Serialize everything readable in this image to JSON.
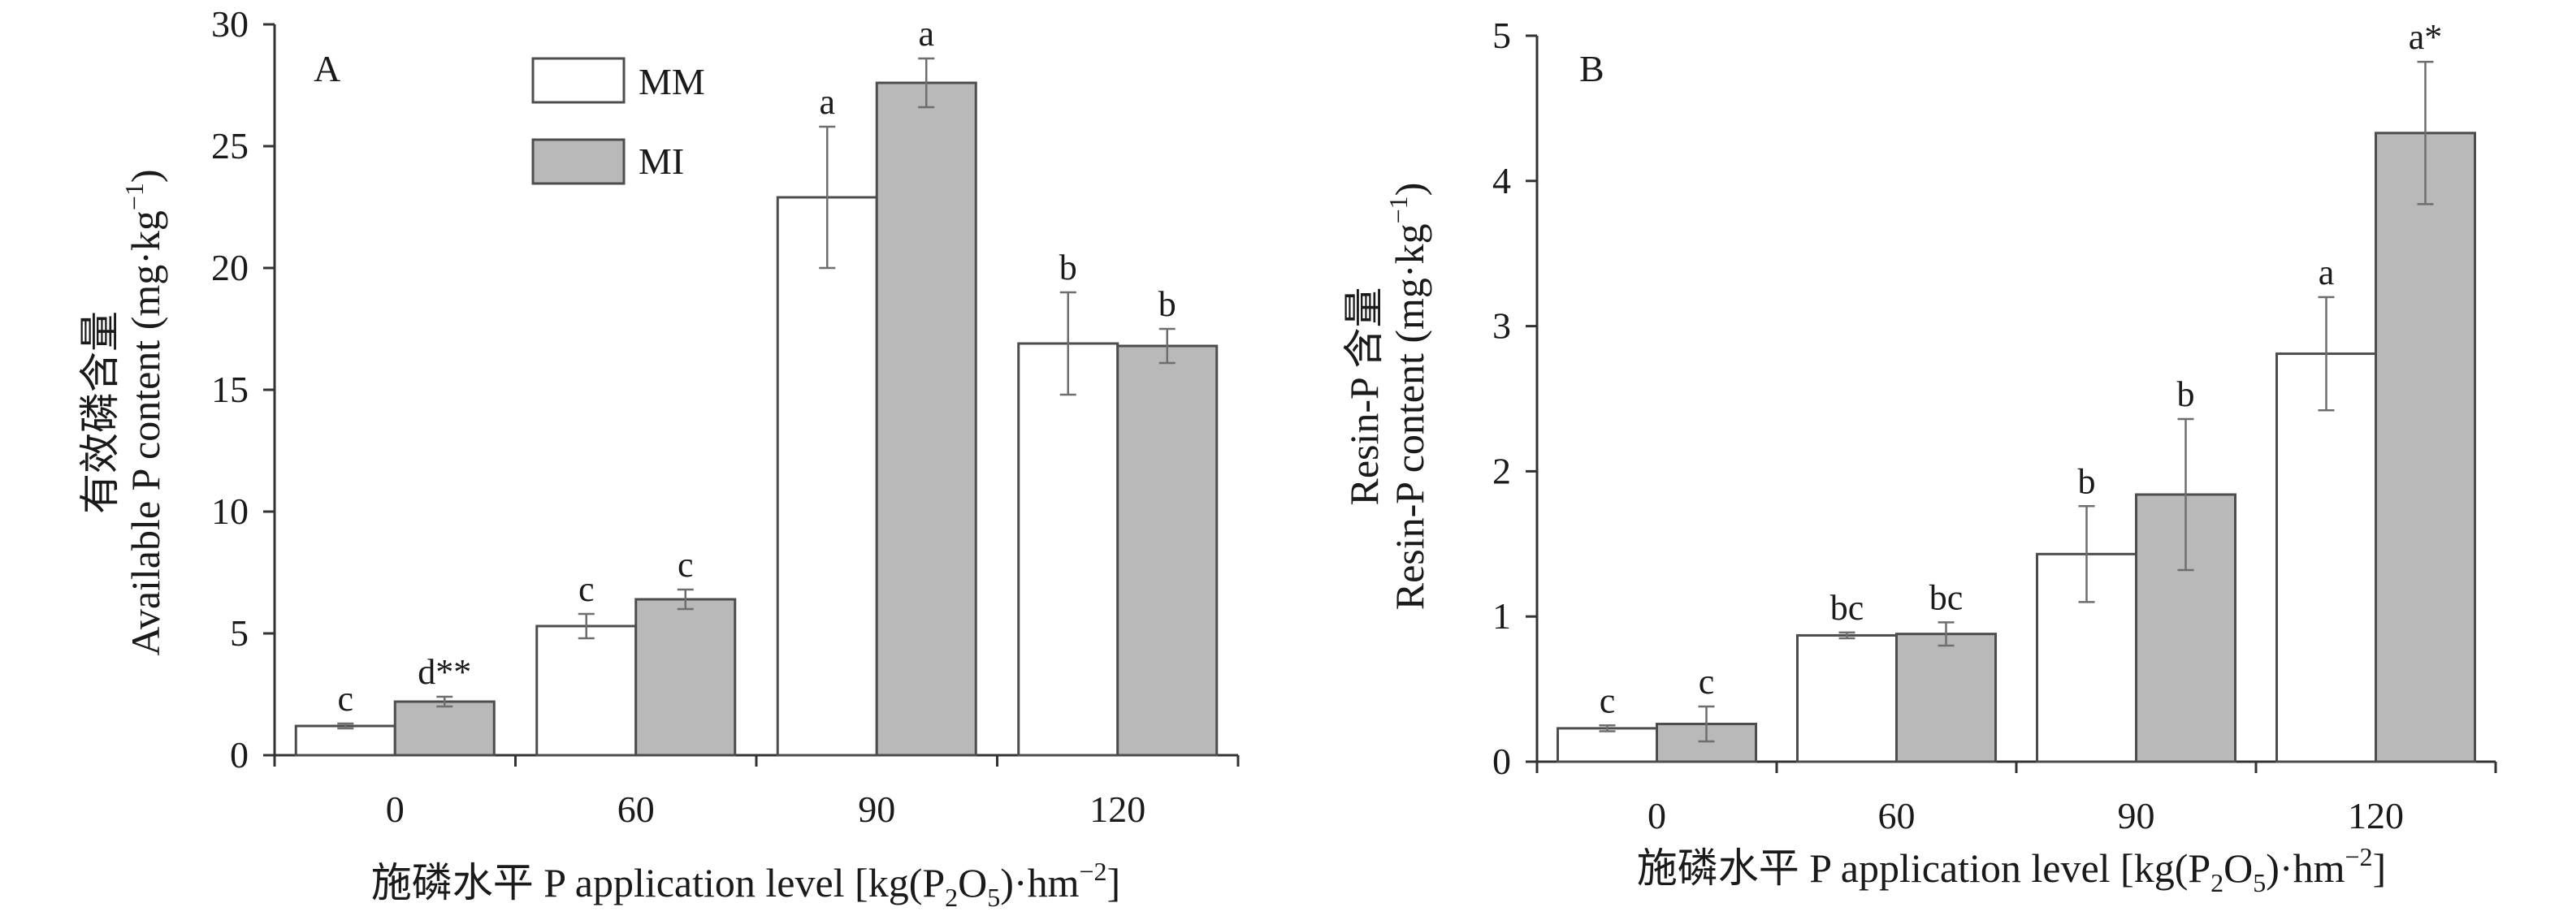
{
  "legend": {
    "items": [
      {
        "name": "MM",
        "color": "#ffffff"
      },
      {
        "name": "MI",
        "color": "#b9b9b9"
      }
    ],
    "placement": "top-center of panel A"
  },
  "chart_data": [
    {
      "type": "bar",
      "panel_label": "A",
      "title": "",
      "ylabel_cn": "有效磷含量",
      "ylabel": "Available P content (mg·kg",
      "ylabel_sup": "−1",
      "ylabel_end": ")",
      "xlabel_cn": "施磷水平",
      "xlabel": "P application level [kg(P",
      "xlabel_sub1": "2",
      "xlabel_mid": "O",
      "xlabel_sub2": "5",
      "xlabel_end": ")·hm",
      "xlabel_sup": "−2",
      "xlabel_close": "]",
      "categories": [
        "0",
        "60",
        "90",
        "120"
      ],
      "ylim": [
        0,
        30
      ],
      "yticks": [
        "0",
        "5",
        "10",
        "15",
        "20",
        "25",
        "30"
      ],
      "ytick_values": [
        0,
        5,
        10,
        15,
        20,
        25,
        30
      ],
      "series": [
        {
          "name": "MM",
          "values": [
            1.2,
            5.3,
            22.9,
            16.9
          ],
          "errors": [
            0.1,
            0.5,
            2.9,
            2.1
          ],
          "labels": [
            "c",
            "c",
            "a",
            "b"
          ]
        },
        {
          "name": "MI",
          "values": [
            2.2,
            6.4,
            27.6,
            16.8
          ],
          "errors": [
            0.2,
            0.4,
            1.0,
            0.7
          ],
          "labels": [
            "d**",
            "c",
            "a",
            "b"
          ]
        }
      ]
    },
    {
      "type": "bar",
      "panel_label": "B",
      "title": "",
      "ylabel_cn": "Resin-P 含量",
      "ylabel": "Resin-P content (mg·kg",
      "ylabel_sup": "−1",
      "ylabel_end": ")",
      "xlabel_cn": "施磷水平",
      "xlabel": "P application level [kg(P",
      "xlabel_sub1": "2",
      "xlabel_mid": "O",
      "xlabel_sub2": "5",
      "xlabel_end": ")·hm",
      "xlabel_sup": "−2",
      "xlabel_close": "]",
      "categories": [
        "0",
        "60",
        "90",
        "120"
      ],
      "ylim": [
        0,
        5
      ],
      "yticks": [
        "0",
        "1",
        "2",
        "3",
        "4",
        "5"
      ],
      "ytick_values": [
        0,
        1,
        2,
        3,
        4,
        5
      ],
      "series": [
        {
          "name": "MM",
          "values": [
            0.23,
            0.87,
            1.43,
            2.81
          ],
          "errors": [
            0.02,
            0.02,
            0.33,
            0.39
          ],
          "labels": [
            "c",
            "bc",
            "b",
            "a"
          ]
        },
        {
          "name": "MI",
          "values": [
            0.26,
            0.88,
            1.84,
            4.33
          ],
          "errors": [
            0.12,
            0.08,
            0.52,
            0.49
          ],
          "labels": [
            "c",
            "bc",
            "b",
            "a*"
          ]
        }
      ]
    }
  ]
}
